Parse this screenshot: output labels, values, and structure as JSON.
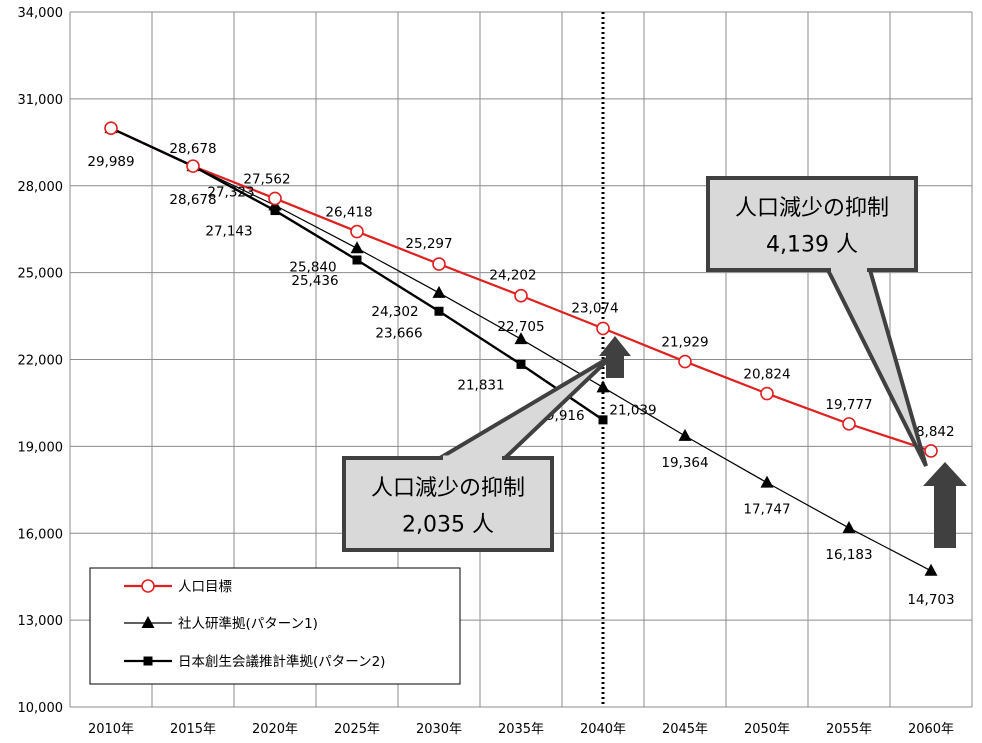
{
  "chart_data": {
    "type": "line",
    "categories": [
      "2010年",
      "2015年",
      "2020年",
      "2025年",
      "2030年",
      "2035年",
      "2040年",
      "2045年",
      "2050年",
      "2055年",
      "2060年"
    ],
    "ylim": [
      10000,
      34000
    ],
    "y_ticks": [
      10000,
      13000,
      16000,
      19000,
      22000,
      25000,
      28000,
      31000,
      34000
    ],
    "y_tick_labels": [
      "10,000",
      "13,000",
      "16,000",
      "19,000",
      "22,000",
      "25,000",
      "28,000",
      "31,000",
      "34,000"
    ],
    "grid": true,
    "legend_placement": "bottom-left",
    "reference_line_category": "2040年",
    "series": [
      {
        "name": "人口目標",
        "color": "#e02020",
        "marker": "open-circle",
        "values": [
          29989,
          28678,
          27562,
          26418,
          25297,
          24202,
          23074,
          21929,
          20824,
          19777,
          18842
        ],
        "labels": [
          "29,989",
          "28,678",
          "27,562",
          "26,418",
          "25,297",
          "24,202",
          "23,074",
          "21,929",
          "20,824",
          "19,777",
          "18,842"
        ]
      },
      {
        "name": "社人研準拠(パターン1)",
        "color": "#000000",
        "marker": "triangle",
        "values": [
          29989,
          28678,
          27323,
          25840,
          24302,
          22705,
          21039,
          19364,
          17747,
          16183,
          14703
        ],
        "labels": [
          "",
          "",
          "27,323",
          "25,840",
          "24,302",
          "22,705",
          "21,039",
          "19,364",
          "17,747",
          "16,183",
          "14,703"
        ]
      },
      {
        "name": "日本創生会議推計準拠(パターン2)",
        "color": "#000000",
        "marker": "square",
        "values": [
          29989,
          28678,
          27143,
          25436,
          23666,
          21831,
          19916,
          null,
          null,
          null,
          null
        ],
        "labels": [
          "",
          "28,678",
          "27,143",
          "25,436",
          "23,666",
          "21,831",
          "19,916",
          "",
          "",
          "",
          ""
        ]
      }
    ],
    "annotations": [
      {
        "line1": "人口減少の抑制",
        "line2": "2,035 人"
      },
      {
        "line1": "人口減少の抑制",
        "line2": "4,139 人"
      }
    ]
  }
}
